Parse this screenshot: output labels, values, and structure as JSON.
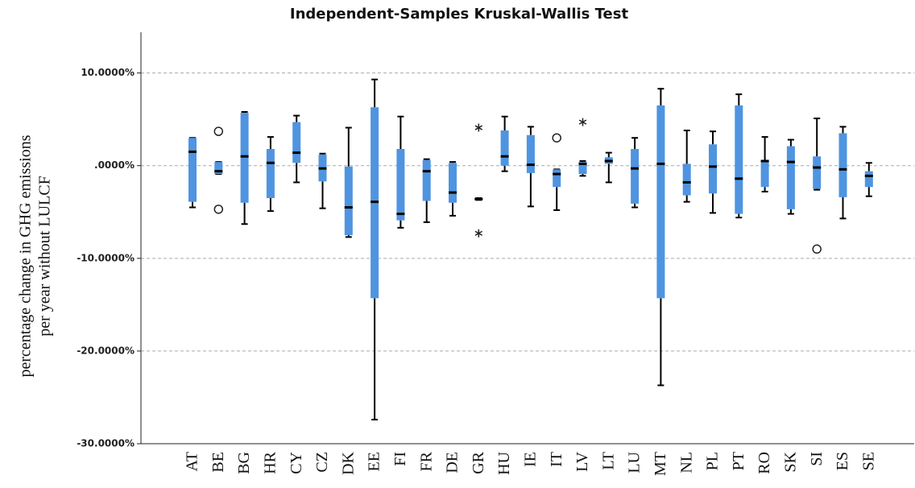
{
  "chart_data": {
    "type": "box",
    "title": "Independent-Samples Kruskal-Wallis Test",
    "ylabel": [
      "percentage change in GHG emissions",
      "per year without LULCF"
    ],
    "ylim": [
      -30,
      14.4
    ],
    "yticks": [
      {
        "value": 10,
        "label": "10.0000%"
      },
      {
        "value": 0,
        "label": ".0000%"
      },
      {
        "value": -10,
        "label": "-10.0000%"
      },
      {
        "value": -20,
        "label": "-20.0000%"
      },
      {
        "value": -30,
        "label": "-30.0000%"
      }
    ],
    "grid": true,
    "color": "#4f94e0",
    "boxes": [
      {
        "name": "AT",
        "whislo": -4.5,
        "q1": -3.9,
        "median": 1.5,
        "q3": 3.0,
        "whishi": 3.0,
        "outliers": []
      },
      {
        "name": "BE",
        "whislo": -0.9,
        "q1": -0.9,
        "median": -0.6,
        "q3": 0.4,
        "whishi": 0.4,
        "outliers": [
          {
            "value": 3.7,
            "marker": "circle"
          },
          {
            "value": -4.7,
            "marker": "circle"
          }
        ]
      },
      {
        "name": "BG",
        "whislo": -6.3,
        "q1": -4.0,
        "median": 1.0,
        "q3": 5.7,
        "whishi": 5.8,
        "outliers": []
      },
      {
        "name": "HR",
        "whislo": -4.9,
        "q1": -3.5,
        "median": 0.3,
        "q3": 1.8,
        "whishi": 3.1,
        "outliers": []
      },
      {
        "name": "CY",
        "whislo": -1.8,
        "q1": 0.3,
        "median": 1.4,
        "q3": 4.7,
        "whishi": 5.4,
        "outliers": []
      },
      {
        "name": "CZ",
        "whislo": -4.6,
        "q1": -1.7,
        "median": -0.3,
        "q3": 1.2,
        "whishi": 1.3,
        "outliers": []
      },
      {
        "name": "DK",
        "whislo": -7.7,
        "q1": -7.5,
        "median": -4.5,
        "q3": -0.1,
        "whishi": 4.1,
        "outliers": []
      },
      {
        "name": "EE",
        "whislo": -27.4,
        "q1": -14.3,
        "median": -3.9,
        "q3": 6.3,
        "whishi": 9.3,
        "outliers": []
      },
      {
        "name": "FI",
        "whislo": -6.7,
        "q1": -5.9,
        "median": -5.2,
        "q3": 1.8,
        "whishi": 5.3,
        "outliers": []
      },
      {
        "name": "FR",
        "whislo": -6.1,
        "q1": -3.8,
        "median": -0.6,
        "q3": 0.6,
        "whishi": 0.7,
        "outliers": []
      },
      {
        "name": "DE",
        "whislo": -5.4,
        "q1": -4.0,
        "median": -2.9,
        "q3": 0.3,
        "whishi": 0.4,
        "outliers": []
      },
      {
        "name": "GR",
        "whislo": -3.7,
        "q1": -3.7,
        "median": -3.6,
        "q3": -3.5,
        "whishi": -3.5,
        "outliers": [
          {
            "value": 4.1,
            "marker": "star"
          },
          {
            "value": -7.3,
            "marker": "star"
          }
        ]
      },
      {
        "name": "HU",
        "whislo": -0.6,
        "q1": 0.0,
        "median": 1.0,
        "q3": 3.8,
        "whishi": 5.3,
        "outliers": []
      },
      {
        "name": "IE",
        "whislo": -4.4,
        "q1": -0.8,
        "median": 0.1,
        "q3": 3.3,
        "whishi": 4.2,
        "outliers": []
      },
      {
        "name": "IT",
        "whislo": -4.8,
        "q1": -2.3,
        "median": -0.9,
        "q3": -0.4,
        "whishi": -0.4,
        "outliers": [
          {
            "value": 3.0,
            "marker": "circle"
          }
        ]
      },
      {
        "name": "LV",
        "whislo": -1.1,
        "q1": -0.9,
        "median": 0.2,
        "q3": 0.4,
        "whishi": 0.5,
        "outliers": [
          {
            "value": 4.7,
            "marker": "star"
          }
        ]
      },
      {
        "name": "LT",
        "whislo": -1.8,
        "q1": 0.2,
        "median": 0.5,
        "q3": 0.9,
        "whishi": 1.4,
        "outliers": []
      },
      {
        "name": "LU",
        "whislo": -4.5,
        "q1": -4.1,
        "median": -0.3,
        "q3": 1.8,
        "whishi": 3.0,
        "outliers": []
      },
      {
        "name": "MT",
        "whislo": -23.7,
        "q1": -14.3,
        "median": 0.2,
        "q3": 6.5,
        "whishi": 8.3,
        "outliers": []
      },
      {
        "name": "NL",
        "whislo": -3.9,
        "q1": -3.2,
        "median": -1.8,
        "q3": 0.2,
        "whishi": 3.8,
        "outliers": []
      },
      {
        "name": "PL",
        "whislo": -5.1,
        "q1": -3.0,
        "median": -0.1,
        "q3": 2.3,
        "whishi": 3.7,
        "outliers": []
      },
      {
        "name": "PT",
        "whislo": -5.6,
        "q1": -5.2,
        "median": -1.4,
        "q3": 6.5,
        "whishi": 7.7,
        "outliers": []
      },
      {
        "name": "RO",
        "whislo": -2.8,
        "q1": -2.3,
        "median": 0.5,
        "q3": 0.6,
        "whishi": 3.1,
        "outliers": []
      },
      {
        "name": "SK",
        "whislo": -5.2,
        "q1": -4.7,
        "median": 0.4,
        "q3": 2.1,
        "whishi": 2.8,
        "outliers": []
      },
      {
        "name": "SI",
        "whislo": -2.6,
        "q1": -2.5,
        "median": -0.2,
        "q3": 1.0,
        "whishi": 5.1,
        "outliers": [
          {
            "value": -9.0,
            "marker": "circle"
          }
        ]
      },
      {
        "name": "ES",
        "whislo": -5.7,
        "q1": -3.4,
        "median": -0.4,
        "q3": 3.5,
        "whishi": 4.2,
        "outliers": []
      },
      {
        "name": "SE",
        "whislo": -3.3,
        "q1": -2.3,
        "median": -1.1,
        "q3": -0.6,
        "whishi": 0.3,
        "outliers": []
      }
    ]
  }
}
